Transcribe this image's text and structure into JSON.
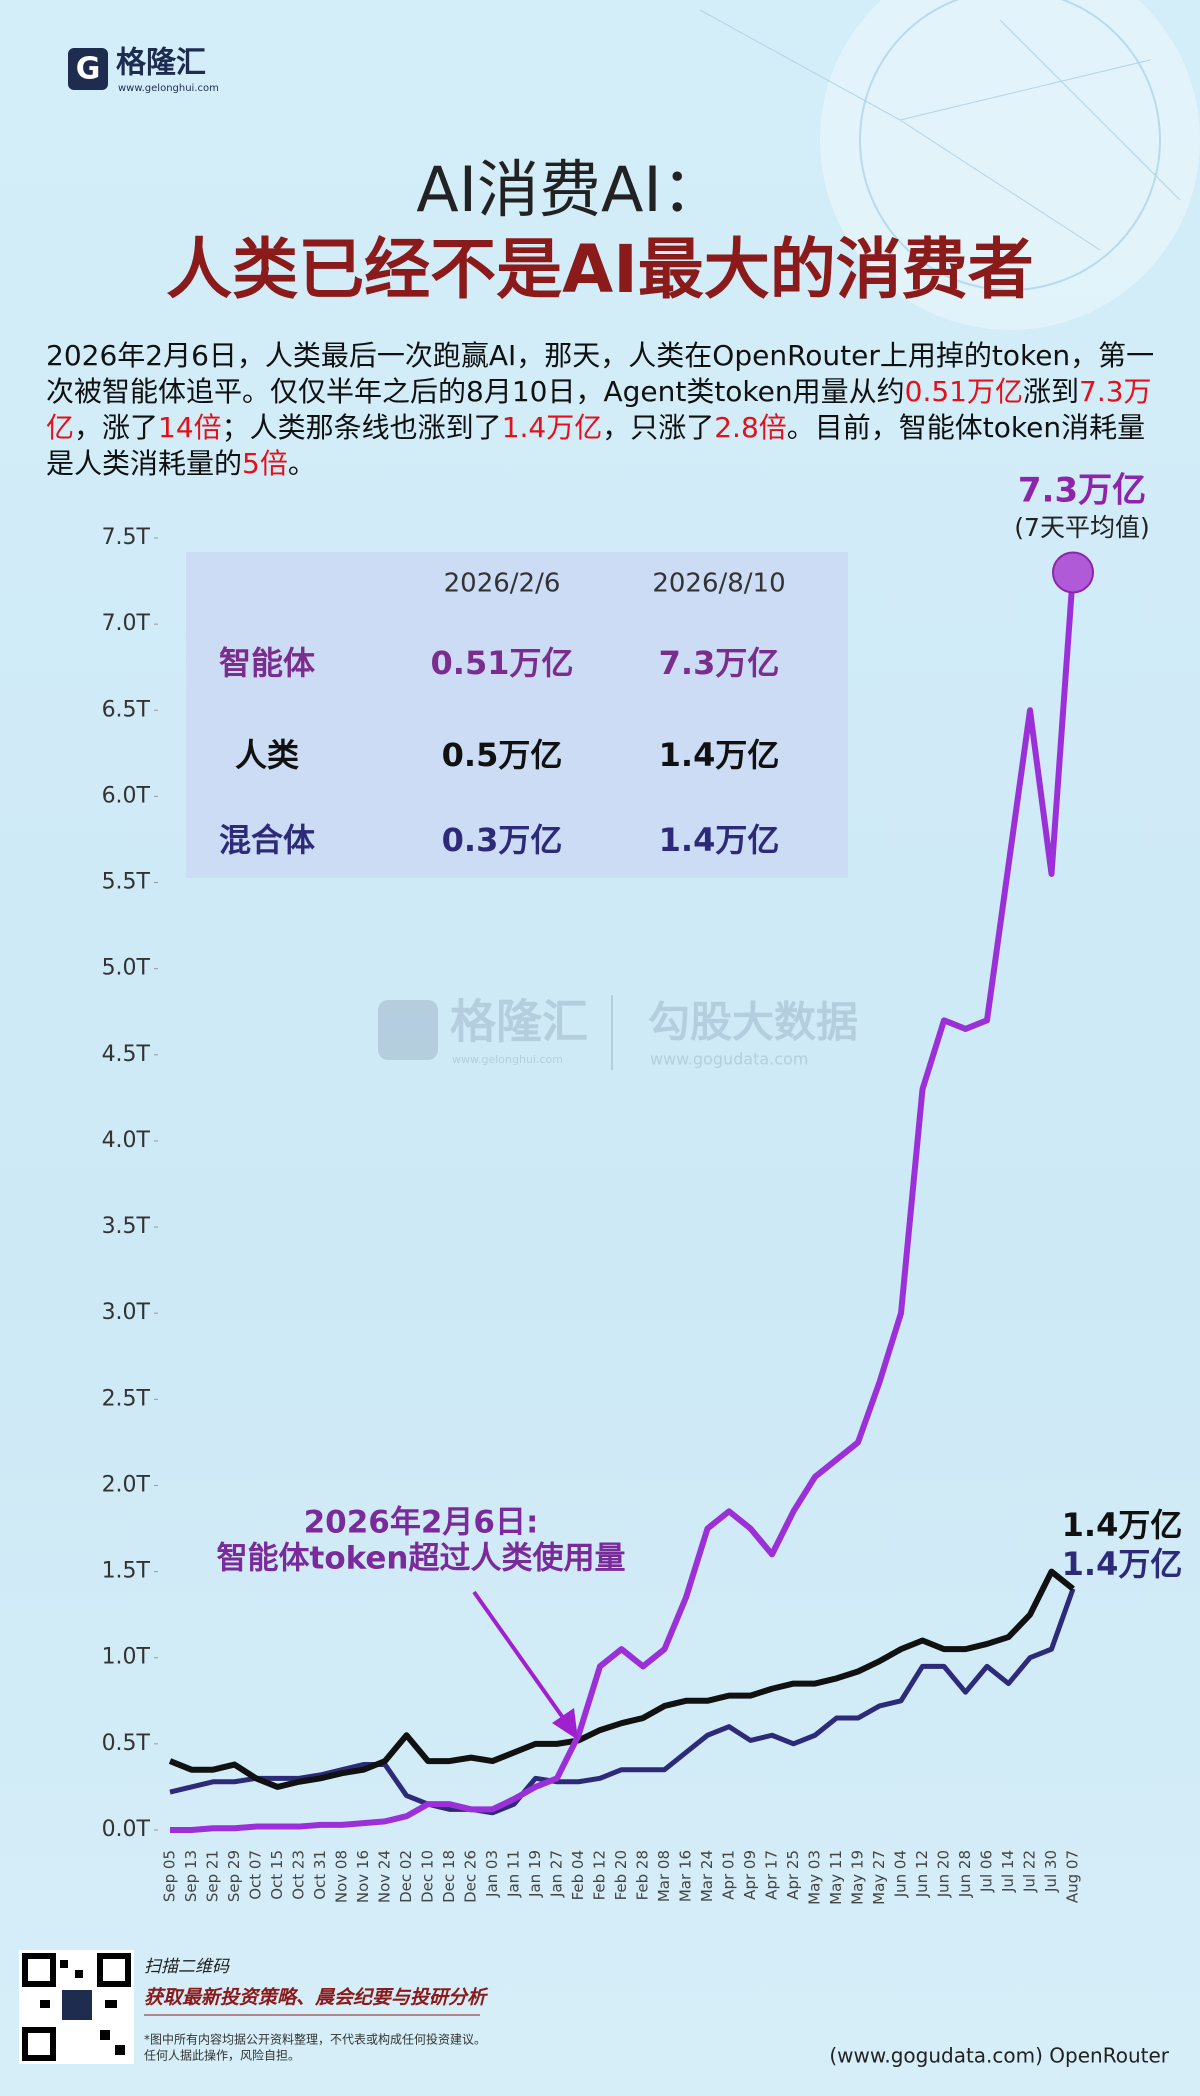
{
  "logo": {
    "name": "格隆汇",
    "url": "www.gelonghui.com"
  },
  "title": {
    "line1": "AI消费AI：",
    "line2": "人类已经不是AI最大的消费者"
  },
  "intro": [
    {
      "text": "2026年2月6日，人类最后一次跑赢AI，那天，人类在OpenRouter上用掉的token，第一次被智能体追平。仅仅半年之后的8月10日，Agent类token用量从约"
    },
    {
      "text": "0.51万亿",
      "red": true
    },
    {
      "text": "涨到"
    },
    {
      "text": "7.3万亿",
      "red": true
    },
    {
      "text": "，涨了"
    },
    {
      "text": "14倍",
      "red": true
    },
    {
      "text": "；人类那条线也涨到了"
    },
    {
      "text": "1.4万亿",
      "red": true
    },
    {
      "text": "，只涨了"
    },
    {
      "text": "2.8倍",
      "red": true
    },
    {
      "text": "。目前，智能体token消耗量是人类消耗量的"
    },
    {
      "text": "5倍",
      "red": true
    },
    {
      "text": "。"
    }
  ],
  "watermark": {
    "brand": "格隆汇",
    "brand_url": "www.gelonghui.com",
    "partner": "勾股大数据",
    "partner_url": "www.gogudata.com"
  },
  "chart_data": {
    "type": "line",
    "categories": [
      "Sep 05",
      "Sep 13",
      "Sep 21",
      "Sep 29",
      "Oct 07",
      "Oct 15",
      "Oct 23",
      "Oct 31",
      "Nov 08",
      "Nov 16",
      "Nov 24",
      "Dec 02",
      "Dec 10",
      "Dec 18",
      "Dec 26",
      "Jan 03",
      "Jan 11",
      "Jan 19",
      "Jan 27",
      "Feb 04",
      "Feb 12",
      "Feb 20",
      "Feb 28",
      "Mar 08",
      "Mar 16",
      "Mar 24",
      "Apr 01",
      "Apr 09",
      "Apr 17",
      "Apr 25",
      "May 03",
      "May 11",
      "May 19",
      "May 27",
      "Jun 04",
      "Jun 12",
      "Jun 20",
      "Jun 28",
      "Jul 06",
      "Jul 14",
      "Jul 22",
      "Jul 30",
      "Aug 07"
    ],
    "series": [
      {
        "name": "智能体",
        "color": "#9b30d9",
        "values": [
          0,
          0,
          0.01,
          0.01,
          0.02,
          0.02,
          0.02,
          0.03,
          0.03,
          0.04,
          0.05,
          0.08,
          0.15,
          0.15,
          0.12,
          0.12,
          0.18,
          0.25,
          0.3,
          0.55,
          0.95,
          1.05,
          0.95,
          1.05,
          1.35,
          1.75,
          1.85,
          1.75,
          1.6,
          1.85,
          2.05,
          2.15,
          2.25,
          2.6,
          3.0,
          4.3,
          4.7,
          4.65,
          4.7,
          5.6,
          6.5,
          5.55,
          7.3
        ],
        "value_labels": [
          null,
          null,
          null,
          null,
          null,
          null,
          null,
          null,
          null,
          null,
          null,
          null,
          null,
          null,
          null,
          null,
          null,
          null,
          null,
          null,
          null,
          null,
          null,
          null,
          null,
          null,
          null,
          null,
          null,
          null,
          null,
          null,
          null,
          null,
          null,
          null,
          null,
          null,
          null,
          null,
          null,
          null,
          "7.3万亿"
        ]
      },
      {
        "name": "人类",
        "color": "#111111",
        "values": [
          0.4,
          0.35,
          0.35,
          0.38,
          0.3,
          0.25,
          0.28,
          0.3,
          0.33,
          0.35,
          0.4,
          0.55,
          0.4,
          0.4,
          0.42,
          0.4,
          0.45,
          0.5,
          0.5,
          0.52,
          0.58,
          0.62,
          0.65,
          0.72,
          0.75,
          0.75,
          0.78,
          0.78,
          0.82,
          0.85,
          0.85,
          0.88,
          0.92,
          0.98,
          1.05,
          1.1,
          1.05,
          1.05,
          1.08,
          1.12,
          1.25,
          1.5,
          1.4
        ],
        "value_labels": [
          null,
          null,
          null,
          null,
          null,
          null,
          null,
          null,
          null,
          null,
          null,
          null,
          null,
          null,
          null,
          null,
          null,
          null,
          null,
          null,
          null,
          null,
          null,
          null,
          null,
          null,
          null,
          null,
          null,
          null,
          null,
          null,
          null,
          null,
          null,
          null,
          null,
          null,
          null,
          null,
          null,
          null,
          "1.4万亿"
        ]
      },
      {
        "name": "混合体",
        "color": "#2d2a7a",
        "values": [
          0.22,
          0.25,
          0.28,
          0.28,
          0.3,
          0.3,
          0.3,
          0.32,
          0.35,
          0.38,
          0.38,
          0.2,
          0.15,
          0.12,
          0.12,
          0.1,
          0.15,
          0.3,
          0.28,
          0.28,
          0.3,
          0.35,
          0.35,
          0.35,
          0.45,
          0.55,
          0.6,
          0.52,
          0.55,
          0.5,
          0.55,
          0.65,
          0.65,
          0.72,
          0.75,
          0.95,
          0.95,
          0.8,
          0.95,
          0.85,
          1.0,
          1.05,
          1.4
        ],
        "value_labels": [
          null,
          null,
          null,
          null,
          null,
          null,
          null,
          null,
          null,
          null,
          null,
          null,
          null,
          null,
          null,
          null,
          null,
          null,
          null,
          null,
          null,
          null,
          null,
          null,
          null,
          null,
          null,
          null,
          null,
          null,
          null,
          null,
          null,
          null,
          null,
          null,
          null,
          null,
          null,
          null,
          null,
          null,
          "1.4万亿"
        ]
      }
    ],
    "ylim": [
      -0.1,
      7.6
    ],
    "yticks": [
      {
        "value": 0,
        "label": "0.0T"
      },
      {
        "value": 0.5,
        "label": "0.5T"
      },
      {
        "value": 1,
        "label": "1.0T"
      },
      {
        "value": 1.5,
        "label": "1.5T"
      },
      {
        "value": 2,
        "label": "2.0T"
      },
      {
        "value": 2.5,
        "label": "2.5T"
      },
      {
        "value": 3,
        "label": "3.0T"
      },
      {
        "value": 3.5,
        "label": "3.5T"
      },
      {
        "value": 4,
        "label": "4.0T"
      },
      {
        "value": 4.5,
        "label": "4.5T"
      },
      {
        "value": 5,
        "label": "5.0T"
      },
      {
        "value": 5.5,
        "label": "5.5T"
      },
      {
        "value": 6,
        "label": "6.0T"
      },
      {
        "value": 6.5,
        "label": "6.5T"
      },
      {
        "value": 7,
        "label": "7.0T"
      },
      {
        "value": 7.5,
        "label": "7.5T"
      }
    ],
    "grid": false,
    "note": "(7天平均值)",
    "annotation": [
      "2026年2月6日:",
      "智能体token超过人类使用量"
    ]
  },
  "table": {
    "columns": [
      "2026/2/6",
      "2026/8/10"
    ],
    "rows": [
      [
        "0.51万亿",
        "7.3万亿"
      ],
      [
        "0.5万亿",
        "1.4万亿"
      ],
      [
        "0.3万亿",
        "1.4万亿"
      ]
    ]
  },
  "footer": {
    "scan": "扫描二维码",
    "slogan": "获取最新投资策略、晨会纪要与投研分析",
    "disclaimer": [
      "*图中所有内容均据公开资料整理，不代表或构成任何投资建议。",
      "任何人据此操作，风险自担。"
    ],
    "source": "(www.gogudata.com) OpenRouter"
  }
}
